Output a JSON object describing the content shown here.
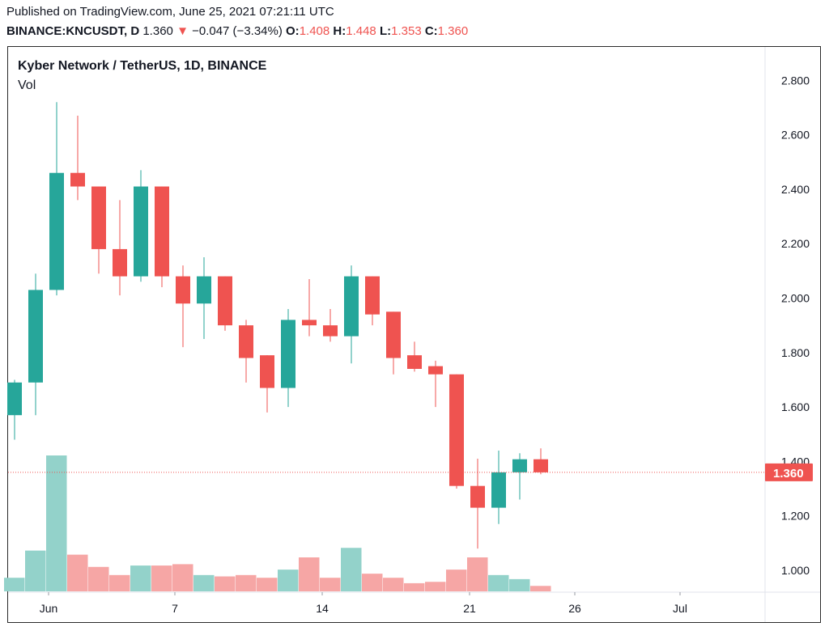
{
  "header": {
    "published": "Published on TradingView.com, June 25, 2021 07:21:11 UTC",
    "symbol": "BINANCE:KNCUSDT, D",
    "last": "1.360",
    "arrow": "▼",
    "change": "−0.047 (−3.34%)",
    "o_label": "O:",
    "o_value": "1.408",
    "h_label": "H:",
    "h_value": "1.448",
    "l_label": "L:",
    "l_value": "1.353",
    "c_label": "C:",
    "c_value": "1.360"
  },
  "colors": {
    "up": "#26a69a",
    "down": "#ef5350",
    "up_volume": "#93d2ca",
    "down_volume": "#f6a6a5",
    "price_line": "#ef5350"
  },
  "chart_data": {
    "type": "candlestick",
    "title": "Kyber Network / TetherUS, 1D, BINANCE",
    "volume_label": "Vol",
    "x_ticks": [
      "Jun",
      "7",
      "14",
      "21",
      "26",
      "Jul"
    ],
    "x_tick_days": [
      1,
      7,
      14,
      21,
      26,
      31
    ],
    "y_ticks": [
      "2.800",
      "2.600",
      "2.400",
      "2.200",
      "2.000",
      "1.800",
      "1.600",
      "1.400",
      "1.200",
      "1.000"
    ],
    "y_tick_values": [
      2.8,
      2.6,
      2.4,
      2.2,
      2.0,
      1.8,
      1.6,
      1.4,
      1.2,
      1.0
    ],
    "ylim": [
      0.91,
      2.91
    ],
    "x_range_days": [
      -0.1,
      36.6
    ],
    "last_price": 1.36,
    "last_price_label": "1.360",
    "candles": [
      {
        "day": 0,
        "o": 1.57,
        "h": 1.7,
        "l": 1.48,
        "c": 1.69,
        "v": 0.1
      },
      {
        "day": 1,
        "o": 1.69,
        "h": 2.09,
        "l": 1.57,
        "c": 2.03,
        "v": 0.3
      },
      {
        "day": 2,
        "o": 2.03,
        "h": 2.72,
        "l": 2.01,
        "c": 2.46,
        "v": 1.0
      },
      {
        "day": 3,
        "o": 2.46,
        "h": 2.67,
        "l": 2.36,
        "c": 2.41,
        "v": 0.27
      },
      {
        "day": 4,
        "o": 2.41,
        "h": 2.41,
        "l": 2.09,
        "c": 2.18,
        "v": 0.18
      },
      {
        "day": 5,
        "o": 2.18,
        "h": 2.36,
        "l": 2.01,
        "c": 2.08,
        "v": 0.12
      },
      {
        "day": 6,
        "o": 2.08,
        "h": 2.47,
        "l": 2.06,
        "c": 2.41,
        "v": 0.19
      },
      {
        "day": 7,
        "o": 2.41,
        "h": 2.41,
        "l": 2.04,
        "c": 2.08,
        "v": 0.19
      },
      {
        "day": 8,
        "o": 2.08,
        "h": 2.12,
        "l": 1.82,
        "c": 1.98,
        "v": 0.2
      },
      {
        "day": 9,
        "o": 1.98,
        "h": 2.15,
        "l": 1.85,
        "c": 2.08,
        "v": 0.12
      },
      {
        "day": 10,
        "o": 2.08,
        "h": 2.08,
        "l": 1.88,
        "c": 1.9,
        "v": 0.11
      },
      {
        "day": 11,
        "o": 1.9,
        "h": 1.92,
        "l": 1.69,
        "c": 1.78,
        "v": 0.12
      },
      {
        "day": 12,
        "o": 1.79,
        "h": 1.79,
        "l": 1.58,
        "c": 1.67,
        "v": 0.1
      },
      {
        "day": 13,
        "o": 1.67,
        "h": 1.96,
        "l": 1.6,
        "c": 1.92,
        "v": 0.16
      },
      {
        "day": 14,
        "o": 1.92,
        "h": 2.07,
        "l": 1.86,
        "c": 1.9,
        "v": 0.25
      },
      {
        "day": 15,
        "o": 1.9,
        "h": 1.96,
        "l": 1.84,
        "c": 1.86,
        "v": 0.1
      },
      {
        "day": 16,
        "o": 1.86,
        "h": 2.12,
        "l": 1.76,
        "c": 2.08,
        "v": 0.32
      },
      {
        "day": 17,
        "o": 2.08,
        "h": 2.08,
        "l": 1.9,
        "c": 1.94,
        "v": 0.13
      },
      {
        "day": 18,
        "o": 1.95,
        "h": 1.95,
        "l": 1.72,
        "c": 1.78,
        "v": 0.1
      },
      {
        "day": 19,
        "o": 1.79,
        "h": 1.84,
        "l": 1.73,
        "c": 1.74,
        "v": 0.06
      },
      {
        "day": 20,
        "o": 1.75,
        "h": 1.77,
        "l": 1.6,
        "c": 1.72,
        "v": 0.07
      },
      {
        "day": 21,
        "o": 1.72,
        "h": 1.72,
        "l": 1.3,
        "c": 1.31,
        "v": 0.16
      },
      {
        "day": 22,
        "o": 1.31,
        "h": 1.41,
        "l": 1.08,
        "c": 1.23,
        "v": 0.25
      },
      {
        "day": 23,
        "o": 1.23,
        "h": 1.44,
        "l": 1.17,
        "c": 1.36,
        "v": 0.12
      },
      {
        "day": 24,
        "o": 1.36,
        "h": 1.43,
        "l": 1.26,
        "c": 1.408,
        "v": 0.09
      },
      {
        "day": 25,
        "o": 1.408,
        "h": 1.448,
        "l": 1.353,
        "c": 1.36,
        "v": 0.04
      }
    ]
  }
}
